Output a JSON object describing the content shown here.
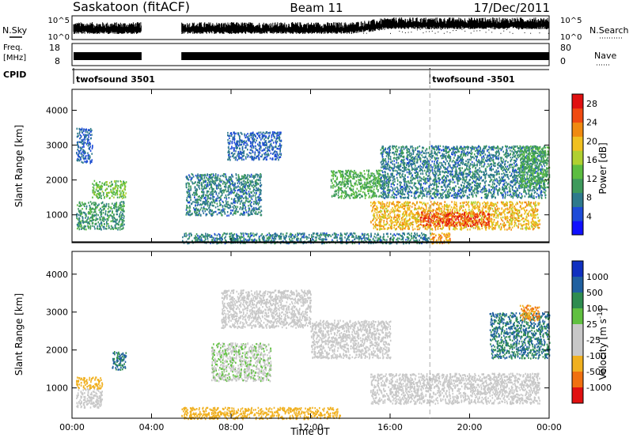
{
  "header": {
    "station": "Saskatoon (fitACF)",
    "beam": "Beam 11",
    "date": "17/Dec/2011"
  },
  "labels": {
    "nsky": "N.Sky",
    "nsearch": "N.Search",
    "freq_line1": "Freq.",
    "freq_line2": "[MHz]",
    "nave": "Nave",
    "cpid": "CPID",
    "noise_left_top": "10^5",
    "noise_left_bot": "10^0",
    "noise_right_top": "10^5",
    "noise_right_bot": "10^0",
    "freq_top": "18",
    "freq_bot": "8",
    "nave_top": "80",
    "nave_bot": "0"
  },
  "cpid_segments": [
    {
      "label": "twofsound 3501",
      "start_hour": 0
    },
    {
      "label": "twofsound -3501",
      "start_hour": 18
    }
  ],
  "colors": {
    "power_scale": [
      "#1010ff",
      "#1d4bd8",
      "#2e7a8c",
      "#3e9a5c",
      "#5cbd40",
      "#b0d030",
      "#f0c020",
      "#f08a10",
      "#f04a10",
      "#e01010"
    ],
    "velocity_scale": [
      "#1030c0",
      "#2060a0",
      "#2e8c50",
      "#60c040",
      "#c8c8c8",
      "#c8c8c8",
      "#f0b020",
      "#f07010",
      "#e01010"
    ],
    "ground_scatter": "#c8c8c8"
  },
  "chart_data": [
    {
      "type": "heatmap",
      "name": "power",
      "title": "",
      "xlabel": "",
      "ylabel": "Slant Range [km]",
      "xlim": [
        0,
        24
      ],
      "ylim": [
        200,
        4600
      ],
      "xticks": [
        "00:00",
        "04:00",
        "08:00",
        "12:00",
        "16:00",
        "20:00",
        "00:00"
      ],
      "yticks": [
        1000,
        2000,
        3000,
        4000
      ],
      "colorbar": {
        "label": "Power [dB]",
        "ticks": [
          4,
          8,
          12,
          16,
          20,
          24,
          28
        ],
        "range": [
          0,
          30
        ]
      },
      "data_gap_hours": [
        [
          3.5,
          5.5
        ]
      ],
      "regions": [
        {
          "t0": 0.2,
          "t1": 2.6,
          "r0": 600,
          "r1": 1400,
          "value": 10
        },
        {
          "t0": 1.0,
          "t1": 2.7,
          "r0": 1500,
          "r1": 2000,
          "value": 14
        },
        {
          "t0": 0.2,
          "t1": 1.0,
          "r0": 2500,
          "r1": 3500,
          "value": 6
        },
        {
          "t0": 5.7,
          "t1": 9.5,
          "r0": 1000,
          "r1": 2200,
          "value": 8
        },
        {
          "t0": 7.8,
          "t1": 10.5,
          "r0": 2600,
          "r1": 3400,
          "value": 6
        },
        {
          "t0": 13.0,
          "t1": 15.5,
          "r0": 1500,
          "r1": 2300,
          "value": 12
        },
        {
          "t0": 15.0,
          "t1": 23.5,
          "r0": 600,
          "r1": 1400,
          "value": 20
        },
        {
          "t0": 17.5,
          "t1": 21.0,
          "r0": 700,
          "r1": 1100,
          "value": 26
        },
        {
          "t0": 18.0,
          "t1": 19.0,
          "r0": 200,
          "r1": 500,
          "value": 22
        },
        {
          "t0": 5.5,
          "t1": 18.0,
          "r0": 200,
          "r1": 500,
          "value": 8
        },
        {
          "t0": 15.5,
          "t1": 23.8,
          "r0": 1500,
          "r1": 3000,
          "value": 8
        },
        {
          "t0": 22.5,
          "t1": 24.0,
          "r0": 1800,
          "r1": 3000,
          "value": 12
        }
      ]
    },
    {
      "type": "heatmap",
      "name": "velocity",
      "title": "",
      "xlabel": "Time UT",
      "ylabel": "Slant Range [km]",
      "xlim": [
        0,
        24
      ],
      "ylim": [
        200,
        4600
      ],
      "xticks": [
        "00:00",
        "04:00",
        "08:00",
        "12:00",
        "16:00",
        "20:00",
        "00:00"
      ],
      "yticks": [
        1000,
        2000,
        3000,
        4000
      ],
      "colorbar": {
        "label": "Velocity [m s^-1]",
        "ticks": [
          1000,
          500,
          100,
          25,
          -25,
          -100,
          -500,
          -1000
        ]
      },
      "data_gap_hours": [
        [
          3.5,
          5.5
        ]
      ],
      "regions": [
        {
          "t0": 0.2,
          "t1": 1.5,
          "r0": 500,
          "r1": 1000,
          "value": 0
        },
        {
          "t0": 0.2,
          "t1": 1.5,
          "r0": 1000,
          "r1": 1300,
          "value": -100
        },
        {
          "t0": 2.0,
          "t1": 2.7,
          "r0": 1500,
          "r1": 2000,
          "value": 200
        },
        {
          "t0": 7.0,
          "t1": 10.0,
          "r0": 1200,
          "r1": 2200,
          "value": 50
        },
        {
          "t0": 7.5,
          "t1": 12.0,
          "r0": 2600,
          "r1": 3600,
          "value": 0
        },
        {
          "t0": 12.0,
          "t1": 16.0,
          "r0": 1800,
          "r1": 2800,
          "value": 0
        },
        {
          "t0": 15.0,
          "t1": 23.5,
          "r0": 600,
          "r1": 1400,
          "value": 0
        },
        {
          "t0": 5.5,
          "t1": 13.5,
          "r0": 200,
          "r1": 500,
          "value": -100
        },
        {
          "t0": 21.0,
          "t1": 24.0,
          "r0": 1800,
          "r1": 3000,
          "value": 200
        },
        {
          "t0": 22.5,
          "t1": 23.5,
          "r0": 2800,
          "r1": 3200,
          "value": -200
        }
      ]
    }
  ]
}
